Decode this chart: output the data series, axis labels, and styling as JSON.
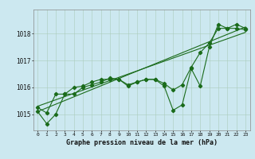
{
  "xlabel": "Graphe pression niveau de la mer (hPa)",
  "background_color": "#cce8f0",
  "grid_color": "#aaccbb",
  "line_color": "#1a6b1a",
  "ylim": [
    1014.4,
    1018.9
  ],
  "yticks": [
    1015,
    1016,
    1017,
    1018
  ],
  "xlim": [
    -0.5,
    23.5
  ],
  "x_ticks": [
    0,
    1,
    2,
    3,
    4,
    5,
    6,
    7,
    8,
    9,
    10,
    11,
    12,
    13,
    14,
    15,
    16,
    17,
    18,
    19,
    20,
    21,
    22,
    23
  ],
  "series1": [
    1015.1,
    1014.65,
    1015.0,
    1015.75,
    1015.75,
    1016.0,
    1016.1,
    1016.2,
    1016.35,
    1016.3,
    1016.05,
    1016.2,
    1016.3,
    1016.3,
    1016.05,
    1015.15,
    1015.35,
    1016.7,
    1016.05,
    1017.5,
    1018.35,
    1018.2,
    1018.35,
    1018.2
  ],
  "series2": [
    1015.25,
    1015.05,
    1015.75,
    1015.75,
    1016.0,
    1016.05,
    1016.2,
    1016.3,
    1016.3,
    1016.3,
    1016.1,
    1016.2,
    1016.3,
    1016.3,
    1016.15,
    1015.9,
    1016.1,
    1016.75,
    1017.3,
    1017.65,
    1018.2,
    1018.2,
    1018.2,
    1018.15
  ],
  "trend1_x": [
    0,
    23
  ],
  "trend1_y": [
    1015.1,
    1018.25
  ],
  "trend2_x": [
    0,
    23
  ],
  "trend2_y": [
    1015.3,
    1018.05
  ]
}
